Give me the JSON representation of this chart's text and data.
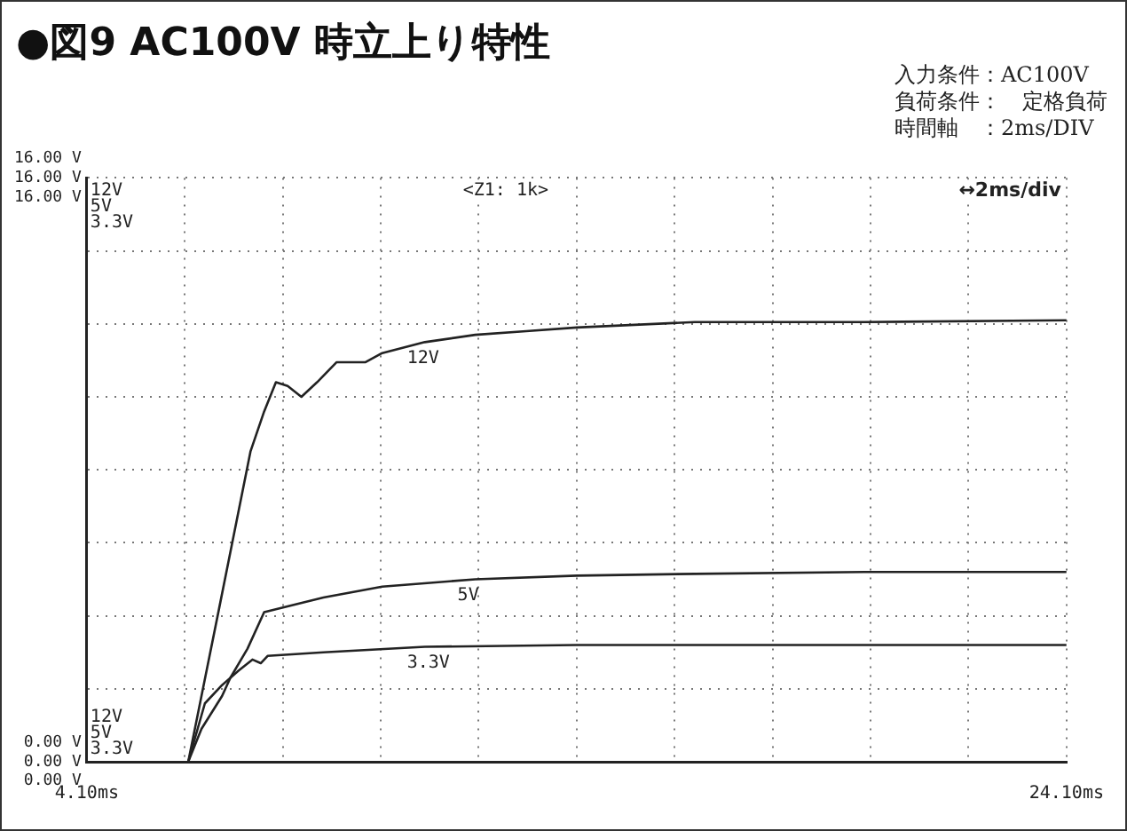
{
  "chart_data": {
    "type": "line",
    "title": "●図9 AC100V 時立上り特性",
    "annotations": [
      "入力条件：AC100V",
      "負荷条件：　定格負荷",
      "時間軸　：2ms/DIV",
      "<Z1: 1k>",
      "↔2ms/div"
    ],
    "xlim": [
      4.1,
      24.1
    ],
    "xticks": [
      {
        "value": 4.1,
        "label": "4.10ms"
      },
      {
        "value": 6.1,
        "label": null
      },
      {
        "value": 8.1,
        "label": null
      },
      {
        "value": 10.1,
        "label": null
      },
      {
        "value": 12.1,
        "label": null
      },
      {
        "value": 14.1,
        "label": null
      },
      {
        "value": 16.1,
        "label": null
      },
      {
        "value": 18.1,
        "label": null
      },
      {
        "value": 20.1,
        "label": null
      },
      {
        "value": 22.1,
        "label": null
      },
      {
        "value": 24.1,
        "label": "24.10ms"
      }
    ],
    "ylim": [
      0,
      16
    ],
    "yticks": [
      {
        "value": 0,
        "label": "0.00 V"
      },
      {
        "value": 2,
        "label": null
      },
      {
        "value": 4,
        "label": null
      },
      {
        "value": 6,
        "label": null
      },
      {
        "value": 8,
        "label": null
      },
      {
        "value": 10,
        "label": null
      },
      {
        "value": 12,
        "label": null
      },
      {
        "value": 14,
        "label": null
      },
      {
        "value": 16,
        "label": "16.00 V"
      }
    ],
    "grid": true,
    "marker": "none",
    "line_style": "solid",
    "legend": false,
    "series": [
      {
        "name": "12V",
        "color": "#222222",
        "x": [
          6.17,
          6.8,
          7.44,
          7.72,
          7.96,
          8.2,
          8.48,
          8.8,
          9.2,
          9.79,
          10.13,
          11.0,
          12.03,
          13.07,
          14.1,
          16.51,
          19.96,
          24.1
        ],
        "values": [
          0,
          4.2,
          8.5,
          9.6,
          10.4,
          10.3,
          10.0,
          10.4,
          10.95,
          10.95,
          11.2,
          11.5,
          11.7,
          11.8,
          11.9,
          12.05,
          12.05,
          12.1
        ]
      },
      {
        "name": "5V",
        "color": "#222222",
        "x": [
          6.17,
          6.44,
          6.86,
          7.03,
          7.38,
          7.72,
          8.93,
          10.13,
          12.03,
          14.1,
          16.51,
          19.96,
          24.1
        ],
        "values": [
          0,
          0.9,
          1.8,
          2.3,
          3.1,
          4.1,
          4.5,
          4.8,
          5.0,
          5.1,
          5.15,
          5.2,
          5.2
        ]
      },
      {
        "name": "3.3V",
        "color": "#222222",
        "x": [
          6.17,
          6.51,
          6.86,
          7.2,
          7.48,
          7.65,
          7.79,
          8.93,
          11.0,
          14.1,
          19.96,
          24.1
        ],
        "values": [
          0,
          1.6,
          2.1,
          2.5,
          2.8,
          2.7,
          2.9,
          3.0,
          3.15,
          3.2,
          3.2,
          3.2
        ]
      }
    ]
  }
}
